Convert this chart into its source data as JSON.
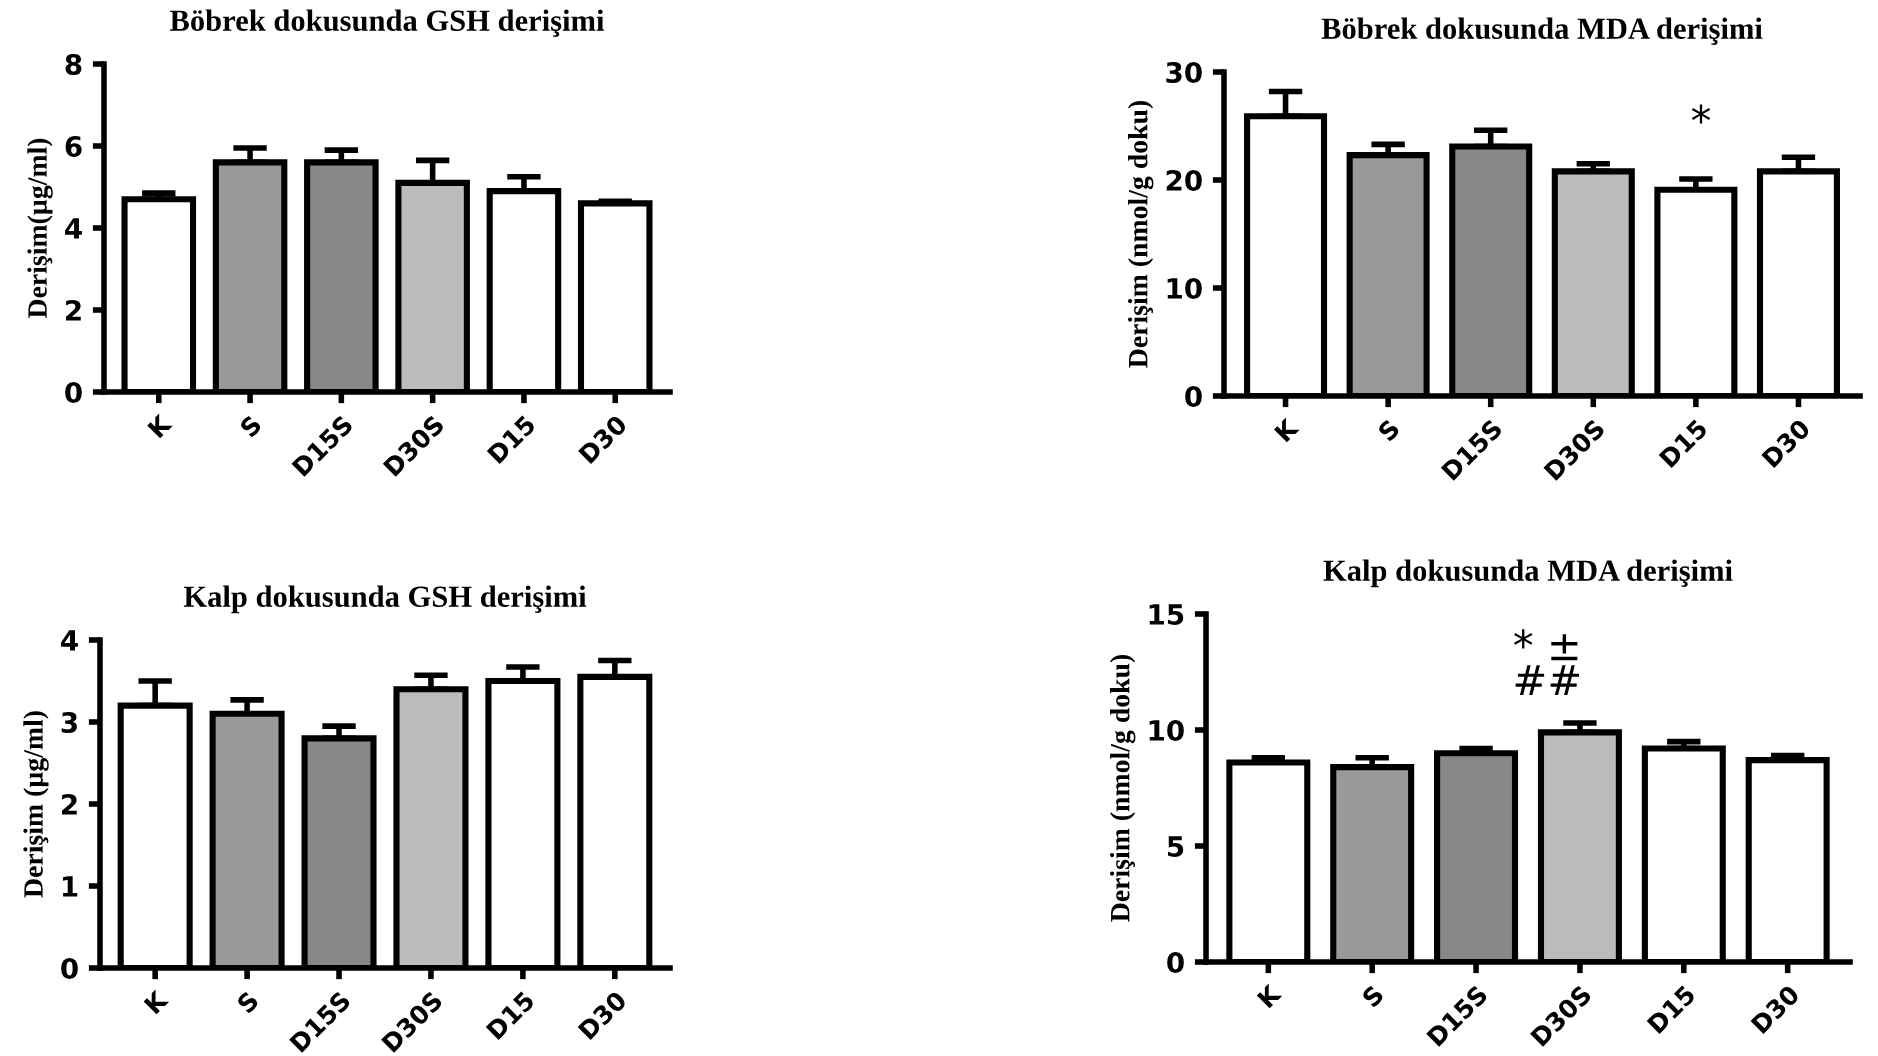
{
  "chart_data": [
    {
      "type": "bar",
      "title": "Böbrek dokusunda GSH derişimi",
      "ylabel": "Derişim(µg/ml)",
      "categories": [
        "K",
        "S",
        "D15S",
        "D30S",
        "D15",
        "D30"
      ],
      "values": [
        4.7,
        5.6,
        5.6,
        5.1,
        4.9,
        4.6
      ],
      "errors": [
        [
          4.7,
          4.85
        ],
        [
          5.6,
          5.95
        ],
        [
          5.6,
          5.9
        ],
        [
          5.1,
          5.65
        ],
        [
          4.9,
          5.25
        ],
        [
          4.6,
          4.65
        ]
      ],
      "colors": [
        "#ffffff",
        "#999999",
        "#888888",
        "#bbbbbb",
        "#ffffff",
        "#ffffff"
      ],
      "ylim": [
        0,
        8
      ],
      "yticks": [
        0,
        2,
        4,
        6,
        8
      ]
    },
    {
      "type": "bar",
      "title": "Böbrek dokusunda MDA derişimi",
      "ylabel": "Derişim (nmol/g doku)",
      "categories": [
        "K",
        "S",
        "D15S",
        "D30S",
        "D15",
        "D30"
      ],
      "values": [
        25.9,
        22.3,
        23.1,
        20.8,
        19.1,
        20.8
      ],
      "errors": [
        [
          25.9,
          28.2
        ],
        [
          22.3,
          23.3
        ],
        [
          23.1,
          24.6
        ],
        [
          20.8,
          21.5
        ],
        [
          19.1,
          20.1
        ],
        [
          20.8,
          22.1
        ]
      ],
      "colors": [
        "#ffffff",
        "#999999",
        "#888888",
        "#bbbbbb",
        "#ffffff",
        "#ffffff"
      ],
      "ylim": [
        0,
        30
      ],
      "yticks": [
        0,
        10,
        20,
        30
      ],
      "annotations": [
        "*"
      ]
    },
    {
      "type": "bar",
      "title": "Kalp dokusunda GSH derişimi",
      "ylabel": "Derişim (µg/ml)",
      "categories": [
        "K",
        "S",
        "D15S",
        "D30S",
        "D15",
        "D30"
      ],
      "values": [
        3.2,
        3.1,
        2.8,
        3.4,
        3.5,
        3.55
      ],
      "errors": [
        [
          3.2,
          3.5
        ],
        [
          3.1,
          3.27
        ],
        [
          2.8,
          2.95
        ],
        [
          3.4,
          3.57
        ],
        [
          3.5,
          3.67
        ],
        [
          3.55,
          3.75
        ]
      ],
      "colors": [
        "#ffffff",
        "#999999",
        "#888888",
        "#bbbbbb",
        "#ffffff",
        "#ffffff"
      ],
      "ylim": [
        0,
        4
      ],
      "yticks": [
        0,
        1,
        2,
        3,
        4
      ]
    },
    {
      "type": "bar",
      "title": "Kalp dokusunda MDA derişimi",
      "ylabel": "Derişim (nmol/g doku)",
      "categories": [
        "K",
        "S",
        "D15S",
        "D30S",
        "D15",
        "D30"
      ],
      "values": [
        8.6,
        8.4,
        9.0,
        9.9,
        9.2,
        8.7
      ],
      "errors": [
        [
          8.6,
          8.8
        ],
        [
          8.4,
          8.8
        ],
        [
          9.0,
          9.2
        ],
        [
          9.9,
          10.3
        ],
        [
          9.2,
          9.5
        ],
        [
          8.7,
          8.9
        ]
      ],
      "colors": [
        "#ffffff",
        "#999999",
        "#888888",
        "#bbbbbb",
        "#ffffff",
        "#ffffff"
      ],
      "ylim": [
        0,
        15
      ],
      "yticks": [
        0,
        5,
        10,
        15
      ],
      "annotations": [
        "* ±",
        "##"
      ]
    }
  ]
}
